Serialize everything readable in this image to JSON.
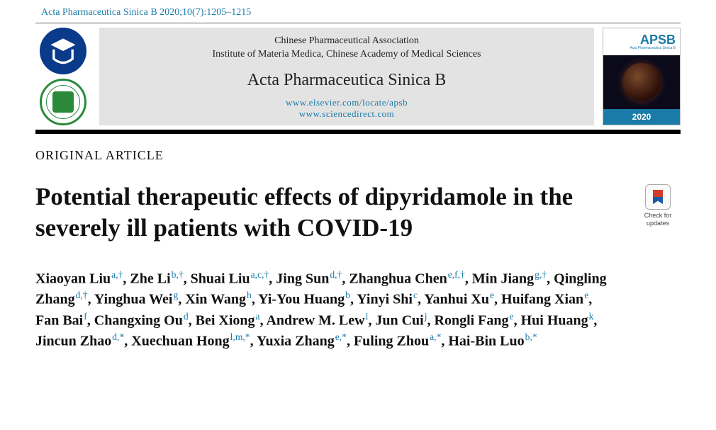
{
  "citation": "Acta Pharmaceutica Sinica B 2020;10(7):1205–1215",
  "banner": {
    "assoc1": "Chinese Pharmaceutical Association",
    "assoc2": "Institute of Materia Medica, Chinese Academy of Medical Sciences",
    "journal": "Acta Pharmaceutica Sinica B",
    "link1": "www.elsevier.com/locate/apsb",
    "link2": "www.sciencedirect.com",
    "cover_abbrev": "APSB",
    "cover_sub": "Acta Pharmaceutica Sinica B",
    "cover_year": "2020"
  },
  "article_type": "ORIGINAL ARTICLE",
  "title": "Potential therapeutic effects of dipyridamole in the severely ill patients with COVID-19",
  "check_updates_label": "Check for updates",
  "colors": {
    "link": "#1a7ba8",
    "banner_bg": "#e3e3e3",
    "rule": "#000000",
    "logo_blue": "#0a3a8a",
    "logo_green": "#2a8a3a"
  },
  "authors": [
    {
      "name": "Xiaoyan Liu",
      "aff": "a,†"
    },
    {
      "name": "Zhe Li",
      "aff": "b,†"
    },
    {
      "name": "Shuai Liu",
      "aff": "a,c,†"
    },
    {
      "name": "Jing Sun",
      "aff": "d,†"
    },
    {
      "name": "Zhanghua Chen",
      "aff": "e,f,†"
    },
    {
      "name": "Min Jiang",
      "aff": "g,†"
    },
    {
      "name": "Qingling Zhang",
      "aff": "d,†"
    },
    {
      "name": "Yinghua Wei",
      "aff": "g"
    },
    {
      "name": "Xin Wang",
      "aff": "h"
    },
    {
      "name": "Yi-You Huang",
      "aff": "b"
    },
    {
      "name": "Yinyi Shi",
      "aff": "c"
    },
    {
      "name": "Yanhui Xu",
      "aff": "e"
    },
    {
      "name": "Huifang Xian",
      "aff": "e"
    },
    {
      "name": "Fan Bai",
      "aff": "f"
    },
    {
      "name": "Changxing Ou",
      "aff": "d"
    },
    {
      "name": "Bei Xiong",
      "aff": "a"
    },
    {
      "name": "Andrew M. Lew",
      "aff": "i"
    },
    {
      "name": "Jun Cui",
      "aff": "j"
    },
    {
      "name": "Rongli Fang",
      "aff": "e"
    },
    {
      "name": "Hui Huang",
      "aff": "k"
    },
    {
      "name": "Jincun Zhao",
      "aff": "d,*"
    },
    {
      "name": "Xuechuan Hong",
      "aff": "l,m,*"
    },
    {
      "name": "Yuxia Zhang",
      "aff": "e,*"
    },
    {
      "name": "Fuling Zhou",
      "aff": "a,*"
    },
    {
      "name": "Hai-Bin Luo",
      "aff": "b,*"
    }
  ]
}
